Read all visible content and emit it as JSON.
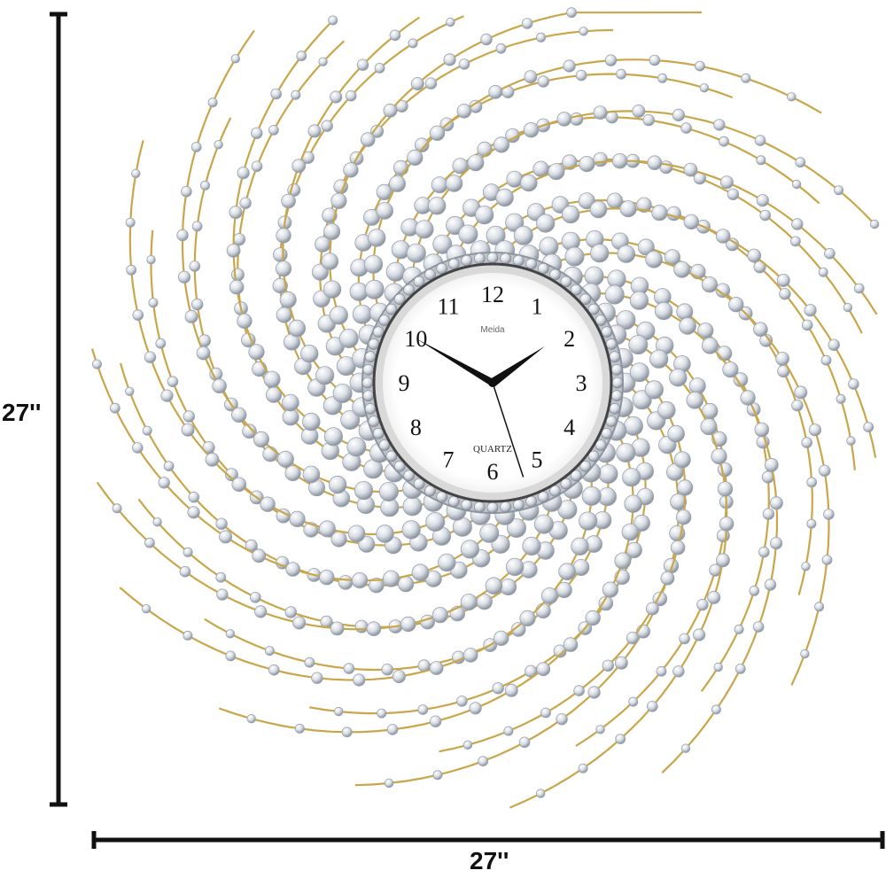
{
  "dimensions": {
    "height_label": "27''",
    "width_label": "27''"
  },
  "clock": {
    "brand": "Meida",
    "movement_label": "QUARTZ",
    "numerals": [
      "12",
      "1",
      "2",
      "3",
      "4",
      "5",
      "6",
      "7",
      "8",
      "9",
      "10",
      "11"
    ],
    "time_shown": {
      "hour": 1,
      "minute": 50,
      "second": 27
    }
  },
  "colors": {
    "frame": "#c9a64a",
    "crystal": "#e6e9ee",
    "crystal_shadow": "#9aa2ad",
    "dial": "#ffffff",
    "ink": "#111111"
  }
}
